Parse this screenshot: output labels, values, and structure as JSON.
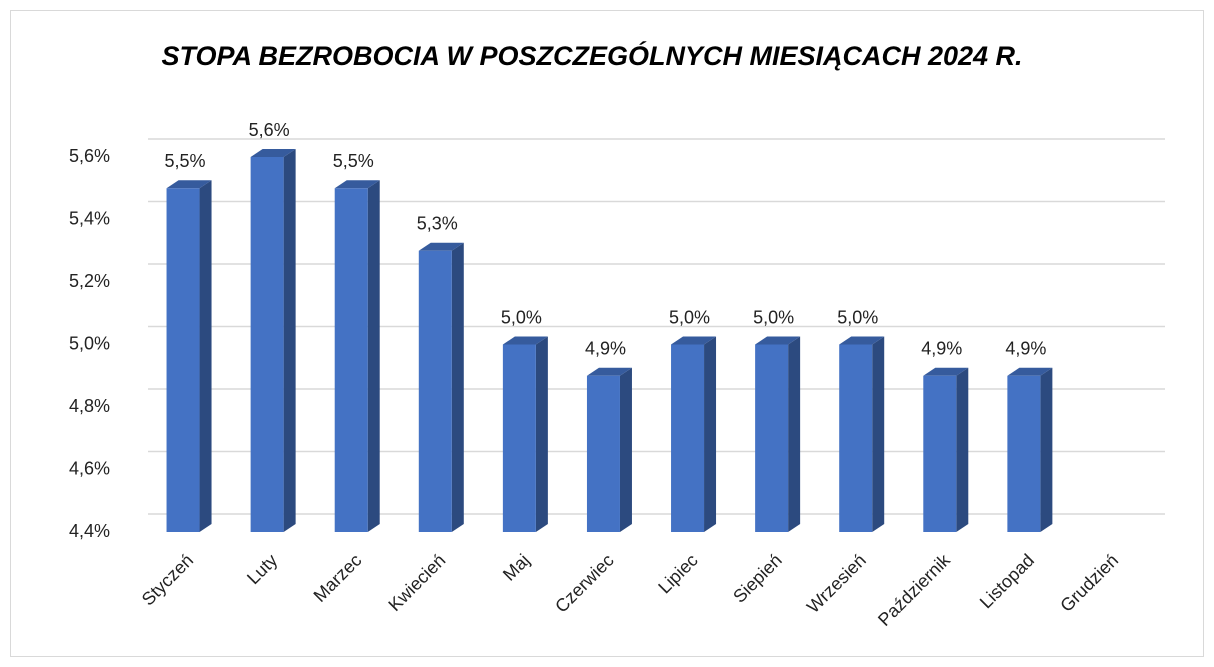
{
  "chart_data": {
    "type": "bar",
    "title": "STOPA BEZROBOCIA W POSZCZEGÓLNYCH MIESIĄCACH 2024 R.",
    "categories": [
      "Styczeń",
      "Luty",
      "Marzec",
      "Kwiecień",
      "Maj",
      "Czerwiec",
      "Lipiec",
      "Siepień",
      "Wrzesień",
      "Październik",
      "Listopad",
      "Grudzień"
    ],
    "values": [
      5.5,
      5.6,
      5.5,
      5.3,
      5.0,
      4.9,
      5.0,
      5.0,
      5.0,
      4.9,
      4.9,
      null
    ],
    "value_labels": [
      "5,5%",
      "5,6%",
      "5,5%",
      "5,3%",
      "5,0%",
      "4,9%",
      "5,0%",
      "5,0%",
      "5,0%",
      "4,9%",
      "4,9%",
      null
    ],
    "color": "#4472c4",
    "ylim": [
      4.4,
      5.6
    ],
    "yticks": [
      {
        "value": 4.4,
        "label": "4,4%"
      },
      {
        "value": 4.6,
        "label": "4,6%"
      },
      {
        "value": 4.8,
        "label": "4,8%"
      },
      {
        "value": 5.0,
        "label": "5,0%"
      },
      {
        "value": 5.2,
        "label": "5,2%"
      },
      {
        "value": 5.4,
        "label": "5,4%"
      },
      {
        "value": 5.6,
        "label": "5,6%"
      }
    ],
    "grid": true
  }
}
